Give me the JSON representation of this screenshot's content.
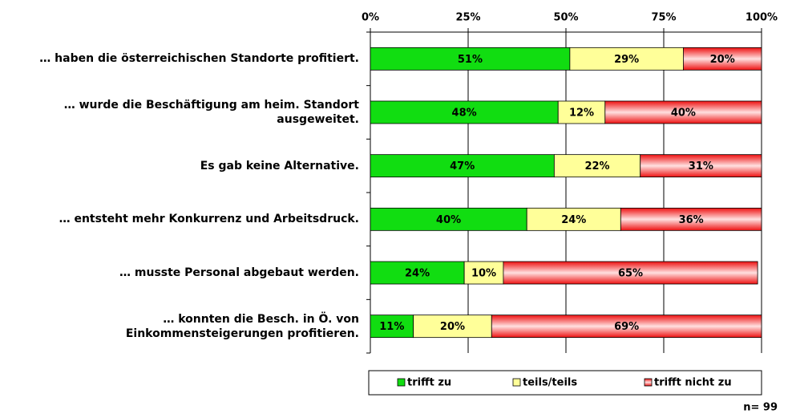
{
  "chart_data": {
    "type": "stacked-bar-horizontal",
    "categories": [
      "… haben die österreichischen Standorte profitiert.",
      "… wurde die Beschäftigung am heim. Standort ausgeweitet.",
      "Es gab keine Alternative.",
      "… entsteht mehr Konkurrenz und Arbeitsdruck.",
      "… musste Personal abgebaut werden.",
      "… konnten die Besch. in Ö. von Einkommensteigerungen profitieren."
    ],
    "series": [
      {
        "name": "trifft zu",
        "color": "#11dd11",
        "values": [
          51,
          48,
          47,
          40,
          24,
          11
        ],
        "value_labels": [
          "51%",
          "48%",
          "47%",
          "40%",
          "24%",
          "11%"
        ]
      },
      {
        "name": "teils/teils",
        "color": "#ffff99",
        "values": [
          29,
          12,
          22,
          24,
          10,
          20
        ],
        "value_labels": [
          "29%",
          "12%",
          "22%",
          "24%",
          "10%",
          "20%"
        ]
      },
      {
        "name": "trifft nicht zu",
        "color": "#ee1111",
        "values": [
          20,
          40,
          31,
          36,
          65,
          69
        ],
        "value_labels": [
          "20%",
          "40%",
          "31%",
          "36%",
          "65%",
          "69%"
        ]
      }
    ],
    "xlim": [
      0,
      100
    ],
    "xticks": [
      {
        "value": 0,
        "label": "0%"
      },
      {
        "value": 25,
        "label": "25%"
      },
      {
        "value": 50,
        "label": "50%"
      },
      {
        "value": 75,
        "label": "75%"
      },
      {
        "value": 100,
        "label": "100%"
      }
    ],
    "grid": true,
    "legend": "bottom",
    "annotation": "n= 99"
  }
}
